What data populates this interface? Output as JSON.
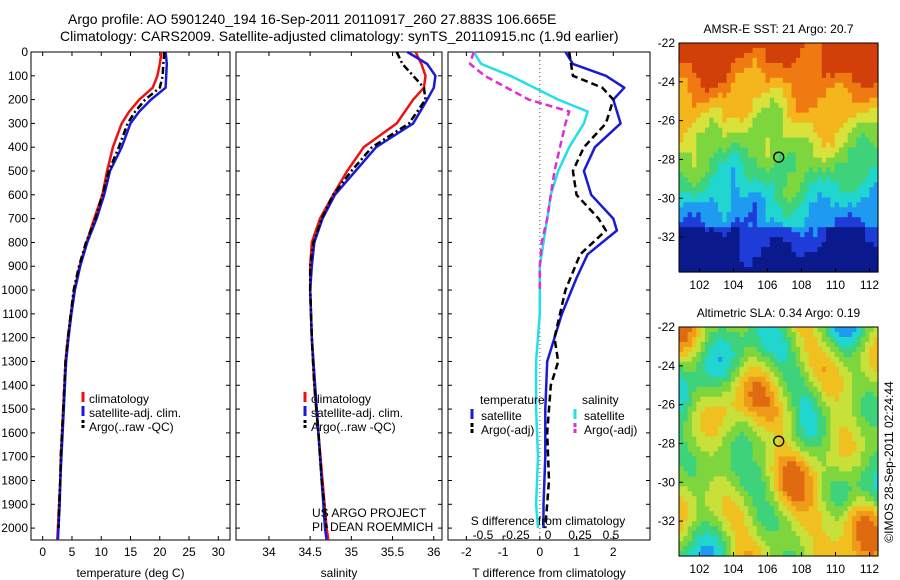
{
  "title_line1": "Argo profile: AO 5901240_194 16-Sep-2011 20110917_260 27.883S 106.665E",
  "title_line2": "Climatology: CARS2009. Satellite-adjusted climatology: synTS_20110915.nc (1.9d earlier)",
  "footer_left": "US ARGO PROJECT",
  "footer_left2": "PI: DEAN ROEMMICH",
  "vertical_stamp": "©IMOS 28-Sep-2011 02:24:44",
  "colors": {
    "climatology": "#ee1111",
    "satellite": "#1a1ad6",
    "argo": "#000000",
    "sat_s": "#22e0e6",
    "argo_s": "#e02bd8"
  },
  "chart_data": [
    {
      "type": "line",
      "xlabel": "temperature (deg C)",
      "ylabel": "",
      "xlim": [
        -2,
        32
      ],
      "ylim": [
        2050,
        0
      ],
      "xticks": [
        0,
        5,
        10,
        15,
        20,
        25,
        30
      ],
      "yticks": [
        0,
        100,
        200,
        300,
        400,
        500,
        600,
        700,
        800,
        900,
        1000,
        1100,
        1200,
        1300,
        1400,
        1500,
        1600,
        1700,
        1800,
        1900,
        2000
      ],
      "legend": [
        "climatology",
        "satellite-adj. clim.",
        "Argo(..raw -QC)"
      ],
      "series": [
        {
          "name": "climatology",
          "style": "solid",
          "color": "#ee1111",
          "points": [
            [
              20.3,
              0
            ],
            [
              20.0,
              50
            ],
            [
              19.6,
              100
            ],
            [
              18.8,
              150
            ],
            [
              16.5,
              200
            ],
            [
              14.8,
              250
            ],
            [
              13.5,
              300
            ],
            [
              12.0,
              400
            ],
            [
              11.0,
              500
            ],
            [
              10.2,
              600
            ],
            [
              8.8,
              700
            ],
            [
              7.5,
              800
            ],
            [
              6.3,
              900
            ],
            [
              5.4,
              1000
            ],
            [
              4.8,
              1100
            ],
            [
              4.3,
              1200
            ],
            [
              3.9,
              1300
            ],
            [
              3.7,
              1400
            ],
            [
              3.5,
              1500
            ],
            [
              3.3,
              1600
            ],
            [
              3.1,
              1700
            ],
            [
              3.0,
              1800
            ],
            [
              2.8,
              1900
            ],
            [
              2.6,
              2000
            ],
            [
              2.5,
              2050
            ]
          ]
        },
        {
          "name": "satellite-adj. clim.",
          "style": "solid",
          "color": "#1a1ad6",
          "points": [
            [
              21.0,
              0
            ],
            [
              21.2,
              50
            ],
            [
              21.1,
              100
            ],
            [
              21.0,
              150
            ],
            [
              18.5,
              200
            ],
            [
              16.5,
              250
            ],
            [
              15.0,
              300
            ],
            [
              13.5,
              400
            ],
            [
              11.5,
              500
            ],
            [
              10.5,
              600
            ],
            [
              9.2,
              700
            ],
            [
              7.6,
              800
            ],
            [
              6.4,
              900
            ],
            [
              5.5,
              1000
            ],
            [
              4.9,
              1100
            ],
            [
              4.4,
              1200
            ],
            [
              4.0,
              1300
            ],
            [
              3.8,
              1400
            ],
            [
              3.6,
              1500
            ],
            [
              3.4,
              1600
            ],
            [
              3.2,
              1700
            ],
            [
              3.0,
              1800
            ],
            [
              2.9,
              1900
            ],
            [
              2.7,
              2000
            ],
            [
              2.6,
              2050
            ]
          ]
        },
        {
          "name": "Argo(..raw -QC)",
          "style": "dashdot",
          "color": "#000000",
          "points": [
            [
              20.8,
              0
            ],
            [
              20.6,
              50
            ],
            [
              20.5,
              100
            ],
            [
              20.0,
              150
            ],
            [
              17.5,
              200
            ],
            [
              15.8,
              250
            ],
            [
              14.5,
              300
            ],
            [
              13.0,
              400
            ],
            [
              11.3,
              500
            ],
            [
              10.2,
              600
            ],
            [
              9.0,
              700
            ],
            [
              7.4,
              800
            ],
            [
              6.2,
              900
            ],
            [
              5.3,
              1000
            ],
            [
              4.8,
              1100
            ],
            [
              4.3,
              1200
            ],
            [
              3.9,
              1300
            ],
            [
              3.7,
              1400
            ],
            [
              3.5,
              1500
            ],
            [
              3.3,
              1600
            ],
            [
              3.1,
              1700
            ],
            [
              3.0,
              1800
            ],
            [
              2.8,
              1900
            ],
            [
              2.7,
              2000
            ]
          ]
        }
      ]
    },
    {
      "type": "line",
      "xlabel": "salinity",
      "ylabel": "",
      "xlim": [
        33.6,
        36.1
      ],
      "ylim": [
        2050,
        0
      ],
      "xticks": [
        34,
        34.5,
        35,
        35.5,
        36
      ],
      "legend": [
        "climatology",
        "satellite-adj. clim.",
        "Argo(..raw -QC)"
      ],
      "series": [
        {
          "name": "climatology",
          "style": "solid",
          "color": "#ee1111",
          "points": [
            [
              35.78,
              0
            ],
            [
              35.85,
              50
            ],
            [
              35.9,
              100
            ],
            [
              35.88,
              150
            ],
            [
              35.75,
              200
            ],
            [
              35.55,
              300
            ],
            [
              35.15,
              400
            ],
            [
              34.95,
              500
            ],
            [
              34.78,
              600
            ],
            [
              34.62,
              700
            ],
            [
              34.52,
              800
            ],
            [
              34.5,
              900
            ],
            [
              34.5,
              1000
            ],
            [
              34.52,
              1200
            ],
            [
              34.55,
              1400
            ],
            [
              34.6,
              1600
            ],
            [
              34.65,
              1800
            ],
            [
              34.7,
              2000
            ],
            [
              34.72,
              2050
            ]
          ]
        },
        {
          "name": "satellite-adj. clim.",
          "style": "solid",
          "color": "#1a1ad6",
          "points": [
            [
              35.68,
              0
            ],
            [
              35.92,
              50
            ],
            [
              36.02,
              100
            ],
            [
              36.0,
              150
            ],
            [
              35.92,
              200
            ],
            [
              35.75,
              300
            ],
            [
              35.3,
              400
            ],
            [
              35.05,
              500
            ],
            [
              34.8,
              600
            ],
            [
              34.65,
              700
            ],
            [
              34.55,
              800
            ],
            [
              34.52,
              900
            ],
            [
              34.5,
              1000
            ],
            [
              34.52,
              1200
            ],
            [
              34.56,
              1400
            ],
            [
              34.6,
              1600
            ],
            [
              34.64,
              1800
            ],
            [
              34.68,
              2000
            ],
            [
              34.7,
              2050
            ]
          ]
        },
        {
          "name": "Argo(..raw -QC)",
          "style": "dashdot",
          "color": "#000000",
          "points": [
            [
              35.55,
              0
            ],
            [
              35.62,
              50
            ],
            [
              35.75,
              100
            ],
            [
              35.88,
              150
            ],
            [
              35.9,
              200
            ],
            [
              35.7,
              300
            ],
            [
              35.25,
              400
            ],
            [
              35.0,
              500
            ],
            [
              34.78,
              600
            ],
            [
              34.64,
              700
            ],
            [
              34.54,
              800
            ],
            [
              34.5,
              900
            ],
            [
              34.5,
              1000
            ],
            [
              34.52,
              1200
            ],
            [
              34.55,
              1400
            ],
            [
              34.6,
              1600
            ],
            [
              34.64,
              1800
            ],
            [
              34.7,
              2000
            ]
          ]
        }
      ]
    },
    {
      "type": "line",
      "xlabel": "T difference from climatology",
      "x2label": "S difference from climatology",
      "xlim": [
        -2.5,
        3.0
      ],
      "ylim": [
        2050,
        0
      ],
      "xticks": [
        -2,
        -1,
        0,
        1,
        2
      ],
      "x2ticks": [
        -0.5,
        -0.25,
        0,
        0.25,
        0.5
      ],
      "legend_groups": {
        "temperature": [
          "satellite",
          "Argo(-adj)"
        ],
        "salinity": [
          "satellite",
          "Argo(-adj)"
        ]
      },
      "series": [
        {
          "name": "temperature satellite",
          "style": "solid",
          "color": "#1a1ad6",
          "points": [
            [
              0.7,
              0
            ],
            [
              0.9,
              50
            ],
            [
              1.8,
              100
            ],
            [
              2.3,
              150
            ],
            [
              2.0,
              200
            ],
            [
              2.2,
              300
            ],
            [
              1.5,
              400
            ],
            [
              1.2,
              500
            ],
            [
              1.4,
              600
            ],
            [
              2.0,
              700
            ],
            [
              2.1,
              750
            ],
            [
              1.3,
              850
            ],
            [
              1.0,
              950
            ],
            [
              0.6,
              1100
            ],
            [
              0.2,
              1300
            ],
            [
              0.15,
              1500
            ],
            [
              0.15,
              1700
            ],
            [
              0.1,
              1900
            ],
            [
              0.1,
              2000
            ]
          ]
        },
        {
          "name": "temperature Argo(-adj)",
          "style": "dashed",
          "color": "#000000",
          "points": [
            [
              0.8,
              0
            ],
            [
              0.9,
              100
            ],
            [
              1.7,
              150
            ],
            [
              2.0,
              200
            ],
            [
              1.8,
              300
            ],
            [
              1.2,
              400
            ],
            [
              0.9,
              500
            ],
            [
              1.0,
              600
            ],
            [
              1.6,
              700
            ],
            [
              1.8,
              750
            ],
            [
              1.1,
              850
            ],
            [
              0.7,
              1000
            ],
            [
              0.4,
              1200
            ],
            [
              0.5,
              1300
            ],
            [
              0.3,
              1400
            ],
            [
              0.2,
              1600
            ],
            [
              0.25,
              1800
            ],
            [
              0.15,
              2000
            ]
          ]
        },
        {
          "name": "salinity satellite",
          "style": "solid",
          "color": "#22e0e6",
          "points": [
            [
              -1.8,
              0
            ],
            [
              -1.6,
              50
            ],
            [
              -0.8,
              100
            ],
            [
              0.5,
              200
            ],
            [
              1.3,
              250
            ],
            [
              1.2,
              300
            ],
            [
              0.8,
              400
            ],
            [
              0.5,
              500
            ],
            [
              0.3,
              600
            ],
            [
              0.2,
              700
            ],
            [
              0.1,
              800
            ],
            [
              0.0,
              900
            ],
            [
              0.0,
              1100
            ],
            [
              -0.1,
              1300
            ],
            [
              -0.1,
              1500
            ],
            [
              -0.05,
              1700
            ],
            [
              -0.1,
              1900
            ],
            [
              -0.05,
              2000
            ]
          ]
        },
        {
          "name": "salinity Argo(-adj)",
          "style": "dashed",
          "color": "#e02bd8",
          "points": [
            [
              -1.8,
              0
            ],
            [
              -1.9,
              50
            ],
            [
              -1.5,
              100
            ],
            [
              -0.3,
              200
            ],
            [
              0.8,
              250
            ],
            [
              0.7,
              300
            ],
            [
              0.55,
              400
            ],
            [
              0.4,
              500
            ],
            [
              0.3,
              600
            ],
            [
              0.2,
              700
            ],
            [
              0.05,
              800
            ],
            [
              0.0,
              900
            ],
            [
              0.0,
              1000
            ]
          ]
        }
      ]
    },
    {
      "type": "heatmap",
      "title": "AMSR-E SST: 21 Argo: 20.7",
      "xticks": [
        102,
        104,
        106,
        108,
        110,
        112
      ],
      "yticks": [
        -22,
        -24,
        -26,
        -28,
        -30,
        -32
      ],
      "xlim": [
        100.8,
        112.5
      ],
      "ylim": [
        -22,
        -33.8
      ],
      "marker": [
        106.665,
        -27.883
      ],
      "palette": [
        "#0a1a8c",
        "#1e3cd8",
        "#1e9bf0",
        "#22d6d0",
        "#3ed27a",
        "#7ed63e",
        "#d9e23a",
        "#f5b51c",
        "#f07a12",
        "#d2400a"
      ]
    },
    {
      "type": "heatmap",
      "title": "Altimetric SLA: 0.34 Argo: 0.19",
      "xticks": [
        102,
        104,
        106,
        108,
        110,
        112
      ],
      "yticks": [
        -22,
        -24,
        -26,
        -28,
        -30,
        -32
      ],
      "xlim": [
        100.8,
        112.5
      ],
      "ylim": [
        -22,
        -33.8
      ],
      "marker": [
        106.665,
        -27.883
      ],
      "palette": [
        "#1e9bf0",
        "#22d6d0",
        "#3ed27a",
        "#7ed63e",
        "#c8e03a",
        "#f0c020",
        "#f09a1a",
        "#e06a10"
      ]
    }
  ]
}
